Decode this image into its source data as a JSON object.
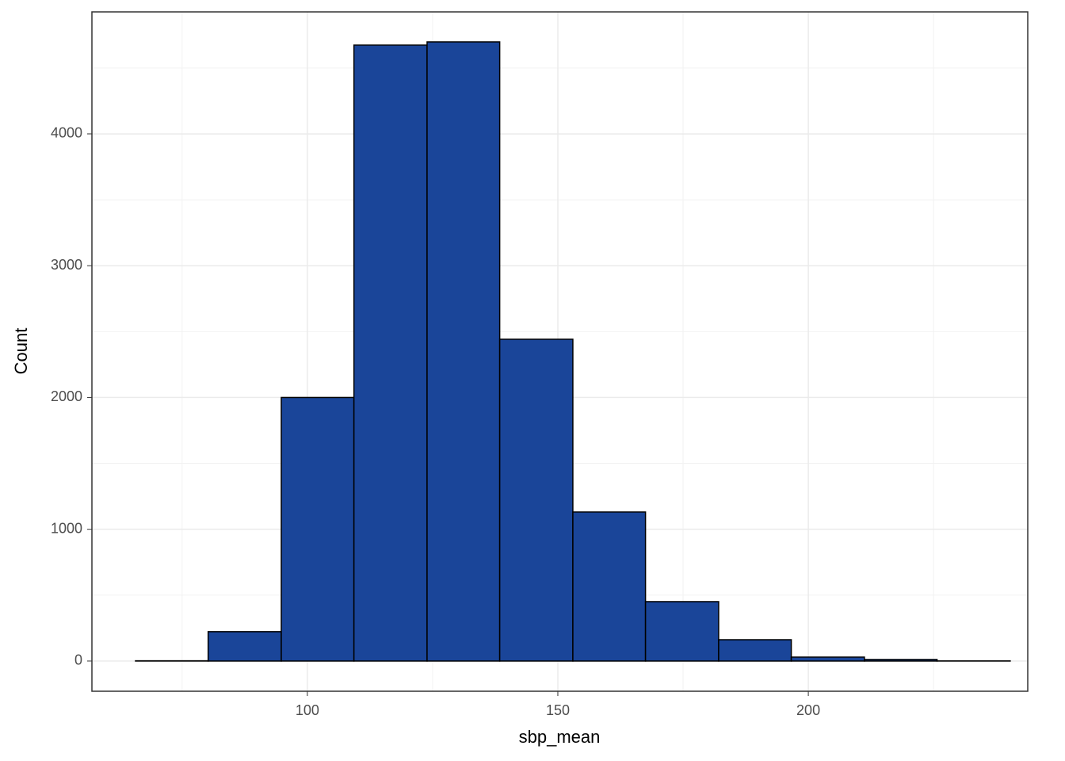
{
  "chart_data": {
    "type": "histogram",
    "x_label": "sbp_mean",
    "y_label": "Count",
    "bins": [
      65.7,
      80.2,
      94.8,
      109.3,
      123.9,
      138.4,
      153.0,
      167.5,
      182.1,
      196.6,
      211.2,
      225.7,
      240.3
    ],
    "values": [
      2,
      223,
      2000,
      4674,
      4698,
      2442,
      1131,
      451,
      162,
      30,
      12,
      1
    ],
    "color": "#1a4599",
    "edge_color": "#000000",
    "xlim": [
      57,
      243.8
    ],
    "ylim": [
      -229,
      4926
    ],
    "xticks": [
      100,
      150,
      200
    ],
    "yticks": [
      0,
      1000,
      2000,
      3000,
      4000
    ],
    "x_minor_grid": [
      75,
      125,
      175,
      225
    ],
    "y_minor_grid": [
      500,
      1500,
      2500,
      3500,
      4500
    ],
    "grid": true
  }
}
